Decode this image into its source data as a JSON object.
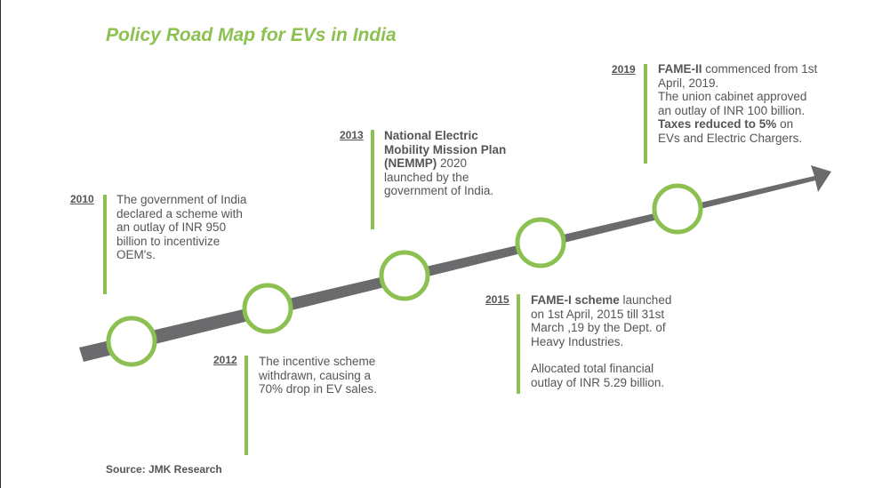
{
  "title": "Policy Road Map for EVs in India",
  "source": "Source: JMK Research",
  "events": [
    {
      "year": "2010",
      "lines": [
        {
          "normal": "The government of India declared a scheme with an outlay of INR 950 billion to incentivize OEM's."
        }
      ]
    },
    {
      "year": "2012",
      "lines": [
        {
          "normal": "The incentive scheme withdrawn, causing a 70% drop in EV sales."
        }
      ]
    },
    {
      "year": "2013",
      "lines": [
        {
          "bold": "National Electric Mobility Mission Plan (NEMMP)",
          "normal": " 2020 launched by the government of India."
        }
      ]
    },
    {
      "year": "2015",
      "lines": [
        {
          "bold": "FAME-I scheme",
          "normal": " launched on 1st April, 2015 till 31st March ,19 by the Dept. of Heavy Industries."
        },
        {
          "normal": "Allocated total financial outlay of INR 5.29 billion."
        }
      ]
    },
    {
      "year": "2019",
      "lines": [
        {
          "bold": "FAME-II",
          "normal": " commenced from 1st April, 2019."
        },
        {
          "normal": "The union cabinet approved an outlay of INR 100 billion."
        },
        {
          "bold": "Taxes reduced to 5%",
          "normal": " on EVs and Electric Chargers."
        }
      ]
    }
  ],
  "colors": {
    "accent": "#8cc152",
    "arrow": "#6b6b6d",
    "text": "#555555"
  }
}
